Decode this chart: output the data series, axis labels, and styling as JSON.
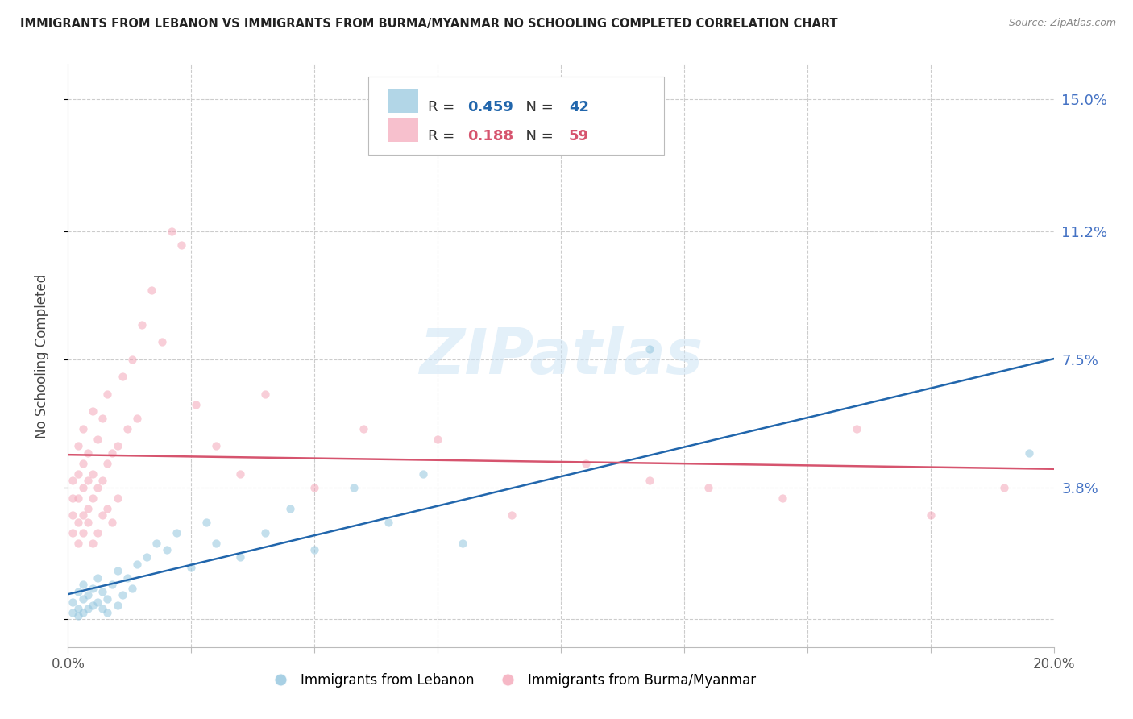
{
  "title": "IMMIGRANTS FROM LEBANON VS IMMIGRANTS FROM BURMA/MYANMAR NO SCHOOLING COMPLETED CORRELATION CHART",
  "source": "Source: ZipAtlas.com",
  "ylabel": "No Schooling Completed",
  "yticks": [
    0.0,
    0.038,
    0.075,
    0.112,
    0.15
  ],
  "ytick_labels": [
    "",
    "3.8%",
    "7.5%",
    "11.2%",
    "15.0%"
  ],
  "xlim": [
    0.0,
    0.2
  ],
  "ylim": [
    -0.008,
    0.16
  ],
  "lebanon_color": "#92c5de",
  "burma_color": "#f4a6b8",
  "lebanon_line_color": "#2166ac",
  "burma_line_color": "#d6546e",
  "lebanon_label": "Immigrants from Lebanon",
  "burma_label": "Immigrants from Burma/Myanmar",
  "legend_R_lebanon": "0.459",
  "legend_N_lebanon": "42",
  "legend_R_burma": "0.188",
  "legend_N_burma": "59",
  "watermark": "ZIPatlas",
  "lebanon_x": [
    0.001,
    0.001,
    0.002,
    0.002,
    0.002,
    0.003,
    0.003,
    0.003,
    0.004,
    0.004,
    0.005,
    0.005,
    0.006,
    0.006,
    0.007,
    0.007,
    0.008,
    0.008,
    0.009,
    0.01,
    0.01,
    0.011,
    0.012,
    0.013,
    0.014,
    0.016,
    0.018,
    0.02,
    0.022,
    0.025,
    0.028,
    0.03,
    0.035,
    0.04,
    0.045,
    0.05,
    0.058,
    0.065,
    0.072,
    0.08,
    0.118,
    0.195
  ],
  "lebanon_y": [
    0.002,
    0.005,
    0.001,
    0.003,
    0.008,
    0.002,
    0.006,
    0.01,
    0.003,
    0.007,
    0.004,
    0.009,
    0.005,
    0.012,
    0.003,
    0.008,
    0.002,
    0.006,
    0.01,
    0.004,
    0.014,
    0.007,
    0.012,
    0.009,
    0.016,
    0.018,
    0.022,
    0.02,
    0.025,
    0.015,
    0.028,
    0.022,
    0.018,
    0.025,
    0.032,
    0.02,
    0.038,
    0.028,
    0.042,
    0.022,
    0.078,
    0.048
  ],
  "burma_x": [
    0.001,
    0.001,
    0.001,
    0.001,
    0.002,
    0.002,
    0.002,
    0.002,
    0.003,
    0.003,
    0.003,
    0.003,
    0.004,
    0.004,
    0.004,
    0.005,
    0.005,
    0.005,
    0.006,
    0.006,
    0.007,
    0.007,
    0.008,
    0.008,
    0.009,
    0.01,
    0.011,
    0.012,
    0.013,
    0.014,
    0.015,
    0.017,
    0.019,
    0.021,
    0.023,
    0.026,
    0.03,
    0.035,
    0.04,
    0.05,
    0.06,
    0.075,
    0.09,
    0.105,
    0.118,
    0.13,
    0.145,
    0.16,
    0.175,
    0.19,
    0.002,
    0.003,
    0.004,
    0.005,
    0.006,
    0.007,
    0.008,
    0.009,
    0.01
  ],
  "burma_y": [
    0.025,
    0.03,
    0.035,
    0.04,
    0.028,
    0.035,
    0.042,
    0.05,
    0.03,
    0.038,
    0.045,
    0.055,
    0.032,
    0.04,
    0.048,
    0.035,
    0.042,
    0.06,
    0.038,
    0.052,
    0.04,
    0.058,
    0.045,
    0.065,
    0.048,
    0.05,
    0.07,
    0.055,
    0.075,
    0.058,
    0.085,
    0.095,
    0.08,
    0.112,
    0.108,
    0.062,
    0.05,
    0.042,
    0.065,
    0.038,
    0.055,
    0.052,
    0.03,
    0.045,
    0.04,
    0.038,
    0.035,
    0.055,
    0.03,
    0.038,
    0.022,
    0.025,
    0.028,
    0.022,
    0.025,
    0.03,
    0.032,
    0.028,
    0.035
  ],
  "background_color": "#ffffff",
  "grid_color": "#cccccc",
  "title_color": "#222222",
  "axis_label_color": "#444444",
  "right_tick_color": "#4472c4",
  "scatter_alpha": 0.55,
  "scatter_size": 55,
  "figsize": [
    14.06,
    8.92
  ],
  "dpi": 100
}
